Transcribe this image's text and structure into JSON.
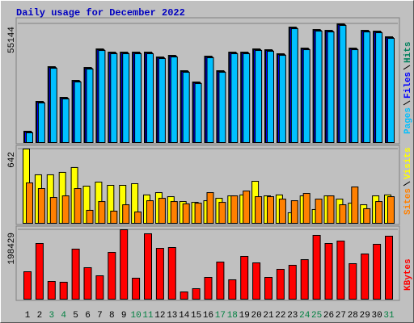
{
  "chart_data": [
    {
      "type": "bar",
      "title": "Daily usage for December 2022",
      "ylim": [
        0,
        57020
      ],
      "yticks": [
        55144
      ],
      "series": [
        {
          "name": "Hits",
          "color": "#00805c",
          "values": [
            5250,
            19125,
            35250,
            21000,
            28875,
            34875,
            43500,
            42000,
            42000,
            42000,
            42000,
            39750,
            40500,
            33375,
            28125,
            40125,
            33375,
            42000,
            42000,
            43500,
            43125,
            41250,
            53625,
            43875,
            52500,
            52125,
            55144,
            43875,
            52125,
            51750,
            49125
          ]
        },
        {
          "name": "Files",
          "color": "#0000ff",
          "values": [
            4875,
            18750,
            34875,
            20625,
            28500,
            34500,
            43125,
            41625,
            41625,
            41625,
            41625,
            39375,
            40125,
            33000,
            27750,
            39750,
            33000,
            41625,
            41625,
            43125,
            42750,
            40875,
            53250,
            43500,
            52125,
            51750,
            54769,
            43500,
            51750,
            51375,
            48750
          ]
        },
        {
          "name": "Pages",
          "color": "#00c0ff",
          "values": [
            4500,
            18375,
            34500,
            20250,
            28125,
            34125,
            42750,
            41250,
            41250,
            41250,
            41250,
            39000,
            39750,
            32625,
            27375,
            39375,
            32625,
            41250,
            41250,
            42750,
            42375,
            40500,
            52875,
            43125,
            51750,
            51375,
            54394,
            43125,
            51375,
            51000,
            48375
          ]
        }
      ]
    },
    {
      "type": "bar",
      "ylim": [
        0,
        656
      ],
      "yticks": [
        642
      ],
      "series": [
        {
          "name": "Visits",
          "color": "#ffff00",
          "values": [
            642,
            419,
            419,
            440,
            482,
            321,
            356,
            328,
            328,
            342,
            245,
            265,
            230,
            188,
            181,
            195,
            216,
            237,
            245,
            363,
            237,
            245,
            91,
            237,
            119,
            237,
            209,
            174,
            160,
            237,
            245
          ]
        },
        {
          "name": "Sites",
          "color": "#ff8000",
          "values": [
            349,
            300,
            223,
            237,
            300,
            112,
            188,
            105,
            160,
            98,
            195,
            216,
            188,
            168,
            174,
            265,
            181,
            237,
            279,
            230,
            230,
            209,
            195,
            258,
            209,
            237,
            160,
            314,
            126,
            188,
            230
          ]
        }
      ]
    },
    {
      "type": "bar",
      "ylim": [
        0,
        203044
      ],
      "yticks": [
        198429
      ],
      "categories": [
        "1",
        "2",
        "3",
        "4",
        "5",
        "6",
        "7",
        "8",
        "9",
        "10",
        "11",
        "12",
        "13",
        "14",
        "15",
        "16",
        "17",
        "18",
        "19",
        "20",
        "21",
        "22",
        "23",
        "24",
        "25",
        "26",
        "27",
        "28",
        "29",
        "30",
        "31"
      ],
      "label_colors": [
        "#000",
        "#000",
        "#008040",
        "#008040",
        "#000",
        "#000",
        "#000",
        "#000",
        "#000",
        "#008040",
        "#008040",
        "#000",
        "#000",
        "#000",
        "#000",
        "#000",
        "#008040",
        "#008040",
        "#000",
        "#000",
        "#000",
        "#000",
        "#000",
        "#008040",
        "#008040",
        "#000",
        "#000",
        "#000",
        "#000",
        "#000",
        "#008040"
      ],
      "series": [
        {
          "name": "KBytes",
          "color": "#ff0000",
          "values": [
            78440,
            159200,
            50760,
            48450,
            143000,
            90000,
            66900,
            133800,
            198429,
            60000,
            186900,
            145300,
            147650,
            20760,
            30000,
            62300,
            106100,
            55400,
            122300,
            103800,
            62300,
            85400,
            96900,
            113000,
            182300,
            159200,
            166100,
            101500,
            129200,
            156900,
            180000
          ]
        }
      ]
    }
  ]
}
